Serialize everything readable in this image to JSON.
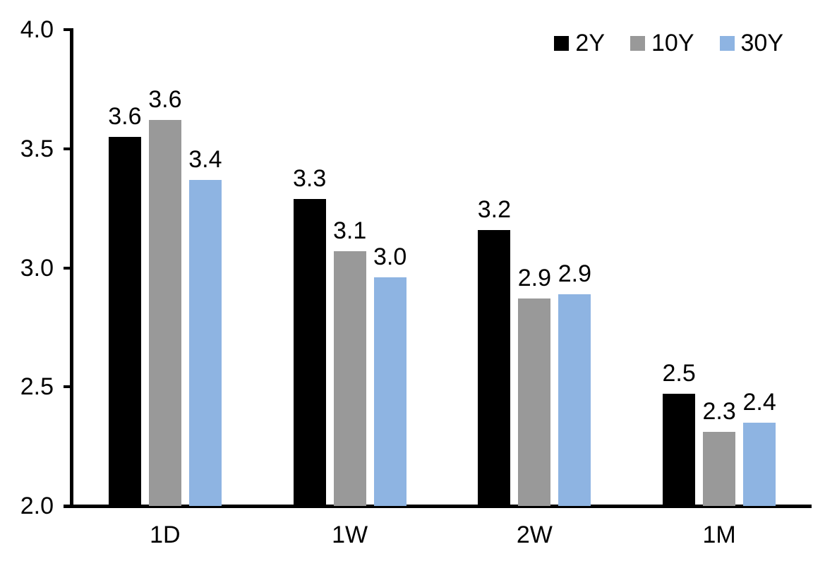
{
  "chart_data": {
    "type": "bar",
    "title": "",
    "xlabel": "",
    "ylabel": "",
    "categories": [
      "1D",
      "1W",
      "2W",
      "1M"
    ],
    "series": [
      {
        "name": "2Y",
        "color": "#000000",
        "values": [
          3.55,
          3.29,
          3.16,
          2.47
        ],
        "labels": [
          "3.6",
          "3.3",
          "3.2",
          "2.5"
        ]
      },
      {
        "name": "10Y",
        "color": "#999999",
        "values": [
          3.62,
          3.07,
          2.87,
          2.31
        ],
        "labels": [
          "3.6",
          "3.1",
          "2.9",
          "2.3"
        ]
      },
      {
        "name": "30Y",
        "color": "#8EB4E2",
        "values": [
          3.37,
          2.96,
          2.89,
          2.35
        ],
        "labels": [
          "3.4",
          "3.0",
          "2.9",
          "2.4"
        ]
      }
    ],
    "ylim": [
      2.0,
      4.0
    ],
    "yticks": [
      "2.0",
      "2.5",
      "3.0",
      "3.5",
      "4.0"
    ],
    "grid": false,
    "legend_position": "top-right",
    "axis_color": "#000000",
    "text_color": "#000000",
    "background_color": "#ffffff"
  }
}
